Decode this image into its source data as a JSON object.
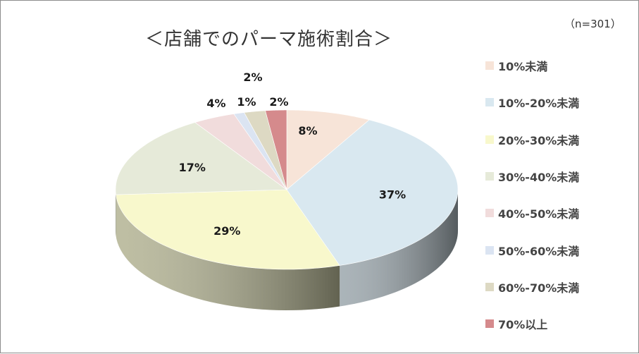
{
  "title": "＜店舗でのパーマ施術割合＞",
  "sample_size": "（n=301）",
  "chart_data": {
    "type": "pie",
    "title": "＜店舗でのパーマ施術割合＞",
    "categories": [
      "10%未満",
      "10%-20%未満",
      "20%-30%未満",
      "30%-40%未満",
      "40%-50%未満",
      "50%-60%未満",
      "60%-70%未満",
      "70%以上"
    ],
    "values": [
      8,
      37,
      29,
      17,
      4,
      1,
      2,
      2
    ],
    "data_labels": [
      "8%",
      "37%",
      "29%",
      "17%",
      "4%",
      "1%",
      "2%",
      "2%"
    ],
    "colors": [
      "#f7e4d8",
      "#d9e8f0",
      "#f8f8cc",
      "#e6ead9",
      "#f1dcdc",
      "#dbe4f2",
      "#ddd9c3",
      "#d58a8c"
    ],
    "legend_position": "right",
    "style": "3d"
  }
}
